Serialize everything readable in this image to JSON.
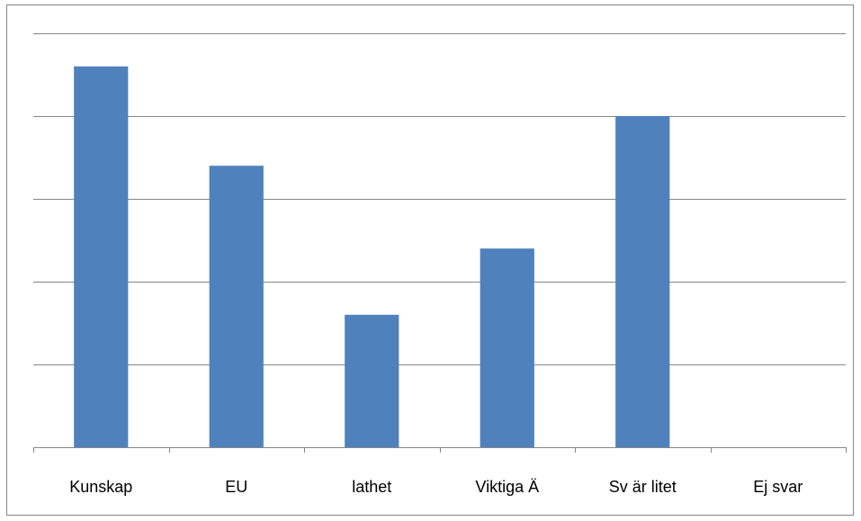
{
  "chart_data": {
    "type": "bar",
    "categories": [
      "Kunskap",
      "EU",
      "lathet",
      "Viktiga Ä",
      "Sv är litet",
      "Ej svar"
    ],
    "values": [
      4.6,
      3.4,
      1.6,
      2.4,
      4,
      0
    ],
    "color": "#4f81bd",
    "ylim": [
      0,
      5
    ],
    "yticks": [
      0,
      1,
      2,
      3,
      4,
      5
    ],
    "grid": true
  }
}
